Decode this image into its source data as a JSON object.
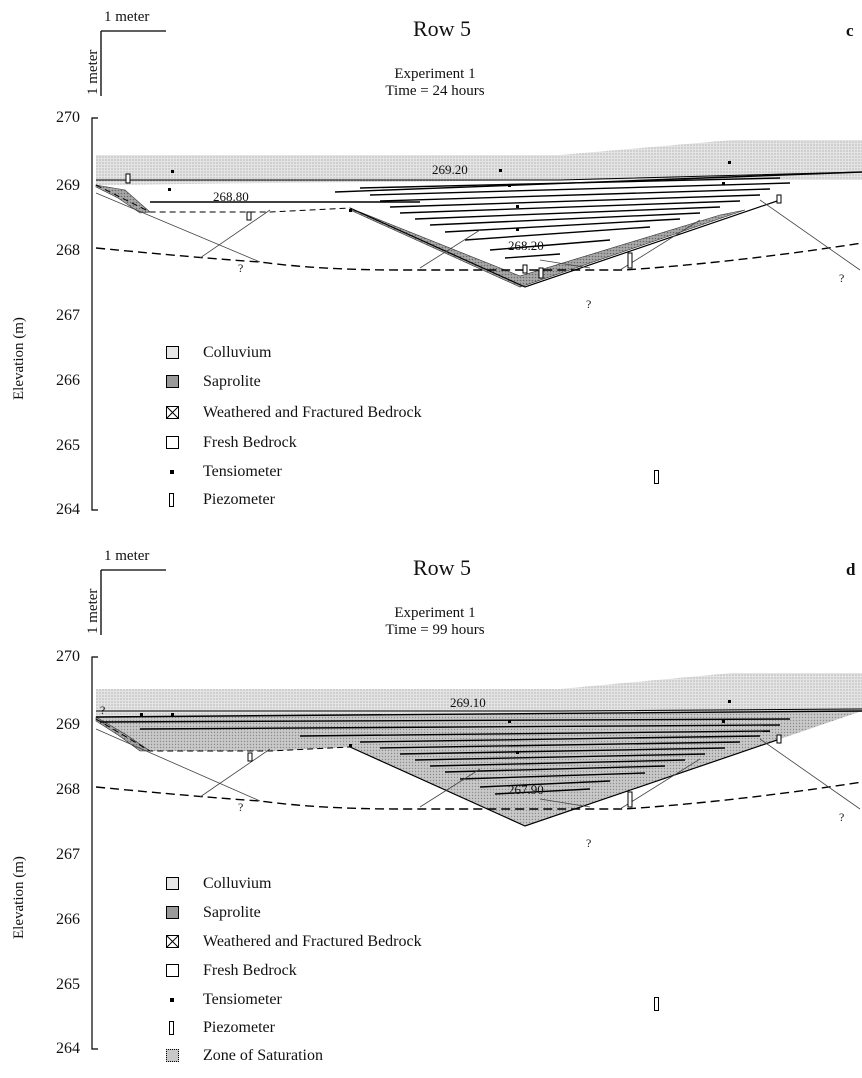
{
  "panels": [
    {
      "id": "c",
      "scale_x_label": "1 meter",
      "scale_y_label": "1 meter",
      "title": "Row 5",
      "panel_letter": "c",
      "experiment": "Experiment 1",
      "time": "Time = 24 hours",
      "y_axis_label": "Elevation (m)",
      "y_ticks": [
        "270",
        "269",
        "268",
        "267",
        "266",
        "265",
        "264"
      ],
      "contour_labels": [
        "269.20",
        "268.80",
        "268.20"
      ],
      "question_marks": [
        "?",
        "?",
        "?",
        "?"
      ],
      "legend": [
        {
          "label": "Colluvium",
          "symbol": "colluvium-box"
        },
        {
          "label": "Saprolite",
          "symbol": "saprolite-box"
        },
        {
          "label": "Weathered and Fractured Bedrock",
          "symbol": "crossed-box"
        },
        {
          "label": "Fresh Bedrock",
          "symbol": "empty-box"
        },
        {
          "label": "Tensiometer",
          "symbol": "dot"
        },
        {
          "label": "Piezometer",
          "symbol": "piezometer-tube"
        }
      ]
    },
    {
      "id": "d",
      "scale_x_label": "1 meter",
      "scale_y_label": "1 meter",
      "title": "Row 5",
      "panel_letter": "d",
      "experiment": "Experiment 1",
      "time": "Time = 99 hours",
      "y_axis_label": "Elevation (m)",
      "y_ticks": [
        "270",
        "269",
        "268",
        "267",
        "266",
        "265",
        "264"
      ],
      "contour_labels": [
        "269.10",
        "267.90"
      ],
      "question_marks": [
        "?",
        "?",
        "?",
        "?",
        "?"
      ],
      "legend": [
        {
          "label": "Colluvium",
          "symbol": "colluvium-box"
        },
        {
          "label": "Saprolite",
          "symbol": "saprolite-box"
        },
        {
          "label": "Weathered and Fractured Bedrock",
          "symbol": "crossed-box"
        },
        {
          "label": "Fresh Bedrock",
          "symbol": "empty-box"
        },
        {
          "label": "Tensiometer",
          "symbol": "dot"
        },
        {
          "label": "Piezometer",
          "symbol": "piezometer-tube"
        },
        {
          "label": "Zone of Saturation",
          "symbol": "saturation-box"
        }
      ]
    }
  ]
}
